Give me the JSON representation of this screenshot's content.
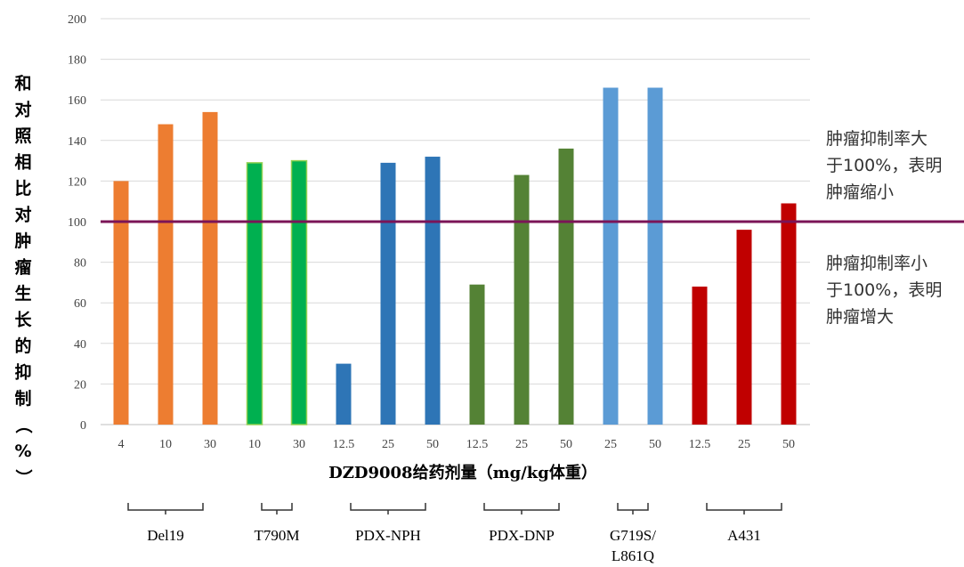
{
  "chart_data": {
    "type": "bar",
    "title": "",
    "xlabel": "DZD9008给药剂量（mg/kg体重）",
    "ylabel": "和对照相比对肿瘤生长的抑制（%）",
    "ylim": [
      0,
      200
    ],
    "yticks": [
      0,
      20,
      40,
      60,
      80,
      100,
      120,
      140,
      160,
      180,
      200
    ],
    "grid": true,
    "reference_line": {
      "value": 100,
      "color": "#7b1457"
    },
    "annotations": [
      [
        "肿瘤抑制率大",
        "于100%，表明",
        "肿瘤缩小"
      ],
      [
        "肿瘤抑制率小",
        "于100%，表明",
        "肿瘤增大"
      ]
    ],
    "bars": [
      {
        "category": "4",
        "group": "Del19",
        "value": 120,
        "color": "#ed7d31"
      },
      {
        "category": "10",
        "group": "Del19",
        "value": 148,
        "color": "#ed7d31"
      },
      {
        "category": "30",
        "group": "Del19",
        "value": 154,
        "color": "#ed7d31"
      },
      {
        "category": "10",
        "group": "T790M",
        "value": 129,
        "color": "#00b050",
        "outline": "#92d050"
      },
      {
        "category": "30",
        "group": "T790M",
        "value": 130,
        "color": "#00b050",
        "outline": "#92d050"
      },
      {
        "category": "12.5",
        "group": "PDX-NPH",
        "value": 30,
        "color": "#2e75b6"
      },
      {
        "category": "25",
        "group": "PDX-NPH",
        "value": 129,
        "color": "#2e75b6"
      },
      {
        "category": "50",
        "group": "PDX-NPH",
        "value": 132,
        "color": "#2e75b6"
      },
      {
        "category": "12.5",
        "group": "PDX-DNP",
        "value": 69,
        "color": "#548235"
      },
      {
        "category": "25",
        "group": "PDX-DNP",
        "value": 123,
        "color": "#548235"
      },
      {
        "category": "50",
        "group": "PDX-DNP",
        "value": 136,
        "color": "#548235"
      },
      {
        "category": "25",
        "group": "G719S/L861Q",
        "value": 166,
        "color": "#5b9bd5"
      },
      {
        "category": "50",
        "group": "G719S/L861Q",
        "value": 166,
        "color": "#5b9bd5"
      },
      {
        "category": "12.5",
        "group": "A431",
        "value": 68,
        "color": "#c00000"
      },
      {
        "category": "25",
        "group": "A431",
        "value": 96,
        "color": "#c00000"
      },
      {
        "category": "50",
        "group": "A431",
        "value": 109,
        "color": "#c00000"
      }
    ],
    "groups": [
      {
        "label": [
          "Del19"
        ],
        "first": 0,
        "last": 2
      },
      {
        "label": [
          "T790M"
        ],
        "first": 3,
        "last": 4
      },
      {
        "label": [
          "PDX-NPH"
        ],
        "first": 5,
        "last": 7
      },
      {
        "label": [
          "PDX-DNP"
        ],
        "first": 8,
        "last": 10
      },
      {
        "label": [
          "G719S/",
          "L861Q"
        ],
        "first": 11,
        "last": 12
      },
      {
        "label": [
          "A431"
        ],
        "first": 13,
        "last": 15
      }
    ]
  }
}
